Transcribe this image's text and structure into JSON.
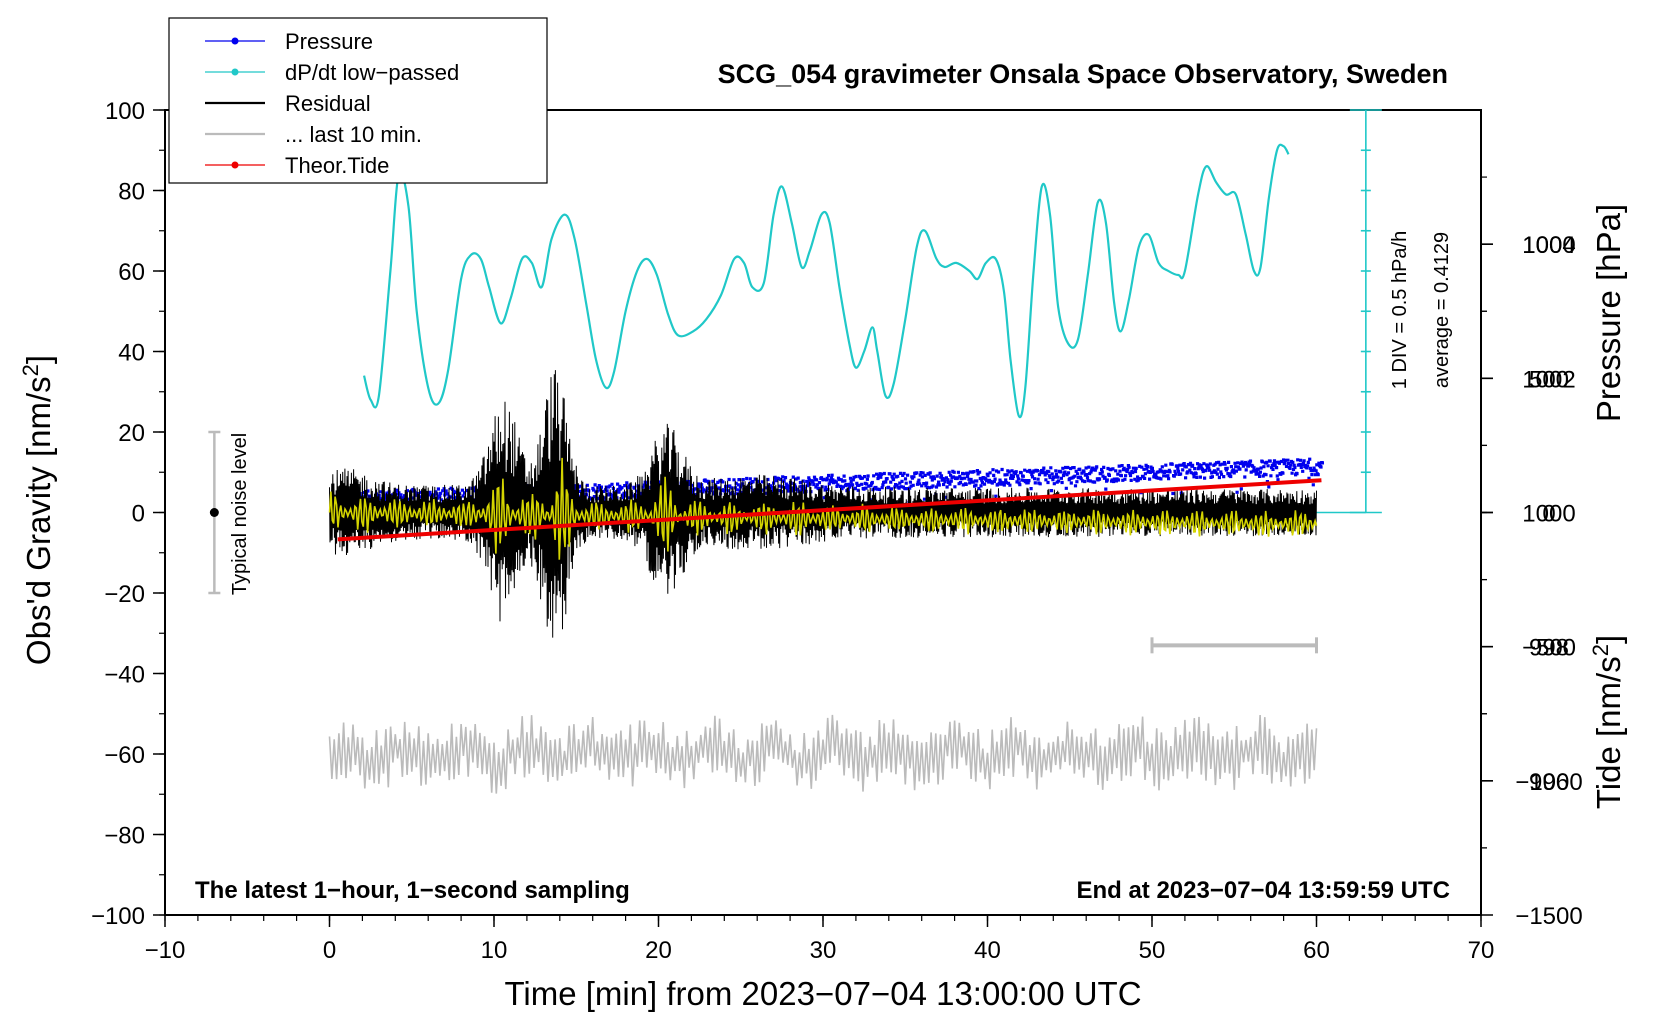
{
  "chart_data": {
    "type": "line",
    "title": "SCG_054 gravimeter Onsala Space Observatory, Sweden",
    "xlabel": "Time [min] from 2023−07−04 13:00:00 UTC",
    "ylabel_left": "Obs'd Gravity [nm/s",
    "ylabel_left_sup": "2",
    "ylabel_left_tail": "]",
    "ylabel_right_pressure": "Pressure [hPa]",
    "ylabel_right_tide": "Tide [nm/s",
    "ylabel_right_tide_sup": "2",
    "ylabel_right_tide_tail": "]",
    "xlim": [
      -10,
      70
    ],
    "ylim_gravity": [
      -100,
      100
    ],
    "ylim_pressure": [
      994,
      1006
    ],
    "ylim_tide": [
      -1500,
      1500
    ],
    "x_ticks": [
      {
        "v": -10,
        "label": "−10"
      },
      {
        "v": 0,
        "label": "0"
      },
      {
        "v": 10,
        "label": "10"
      },
      {
        "v": 20,
        "label": "20"
      },
      {
        "v": 30,
        "label": "30"
      },
      {
        "v": 40,
        "label": "40"
      },
      {
        "v": 50,
        "label": "50"
      },
      {
        "v": 60,
        "label": "60"
      },
      {
        "v": 70,
        "label": "70"
      }
    ],
    "y_ticks_left": [
      {
        "v": 100,
        "label": "100"
      },
      {
        "v": 80,
        "label": "80"
      },
      {
        "v": 60,
        "label": "60"
      },
      {
        "v": 40,
        "label": "40"
      },
      {
        "v": 20,
        "label": "20"
      },
      {
        "v": 0,
        "label": "0"
      },
      {
        "v": -20,
        "label": "−20"
      },
      {
        "v": -40,
        "label": "−40"
      },
      {
        "v": -60,
        "label": "−60"
      },
      {
        "v": -80,
        "label": "−80"
      },
      {
        "v": -100,
        "label": "−100"
      }
    ],
    "y_ticks_pressure": [
      {
        "v": 1004,
        "label": "1004"
      },
      {
        "v": 1002,
        "label": "1002"
      },
      {
        "v": 1000,
        "label": "1000"
      },
      {
        "v": 998,
        "label": "998"
      },
      {
        "v": 996,
        "label": "996"
      }
    ],
    "y_ticks_tide": [
      {
        "v": 1000,
        "label": "1000"
      },
      {
        "v": 500,
        "label": "500"
      },
      {
        "v": 0,
        "label": "0"
      },
      {
        "v": -500,
        "label": "−500"
      },
      {
        "v": -1000,
        "label": "−1000"
      },
      {
        "v": -1500,
        "label": "−1500"
      }
    ],
    "legend": [
      {
        "label": "Pressure",
        "color": "#0000ee",
        "marker": true
      },
      {
        "label": "dP/dt low−passed",
        "color": "#20c8c8",
        "marker": true
      },
      {
        "label": "Residual",
        "color": "#000000",
        "marker": false
      },
      {
        "label": "... last 10 min.",
        "color": "#bbbbbb",
        "marker": false
      },
      {
        "label": "Theor.Tide",
        "color": "#ee0000",
        "marker": true
      }
    ],
    "noise_label": "Typical noise level",
    "noise_range": [
      -20,
      20
    ],
    "noise_x": -7,
    "scale_label_div": "1 DIV = 0.5 hPa/h",
    "scale_label_avg": "average = 0.4129",
    "scale_bar_x": 63,
    "note_left": "The latest 1−hour, 1−second sampling",
    "note_right": "End at 2023−07−04 13:59:59 UTC",
    "window_bar": [
      50,
      60
    ],
    "window_bar_y": -33,
    "series": {
      "pressure": {
        "name": "Pressure",
        "color": "#0000ee",
        "x_range": [
          0.3,
          60.3
        ],
        "p_start": 1000.2,
        "p_end": 1000.7,
        "scatter": 0.12,
        "low_outliers": 999.9
      },
      "dpdt": {
        "name": "dP/dt low−passed",
        "color": "#20c8c8",
        "points": [
          [
            2.1,
            34
          ],
          [
            2.5,
            28
          ],
          [
            3.0,
            29
          ],
          [
            3.7,
            60
          ],
          [
            4.2,
            84
          ],
          [
            4.8,
            76
          ],
          [
            5.3,
            50
          ],
          [
            6.0,
            31
          ],
          [
            6.6,
            27
          ],
          [
            7.2,
            35
          ],
          [
            8.0,
            58
          ],
          [
            8.6,
            64
          ],
          [
            9.2,
            63
          ],
          [
            9.7,
            56
          ],
          [
            10.4,
            47
          ],
          [
            11.0,
            53
          ],
          [
            11.7,
            63
          ],
          [
            12.3,
            62
          ],
          [
            12.9,
            56
          ],
          [
            13.5,
            68
          ],
          [
            14.3,
            74
          ],
          [
            14.9,
            68
          ],
          [
            15.6,
            52
          ],
          [
            16.2,
            38
          ],
          [
            16.8,
            31
          ],
          [
            17.3,
            35
          ],
          [
            18.0,
            50
          ],
          [
            18.7,
            60
          ],
          [
            19.3,
            63
          ],
          [
            19.9,
            59
          ],
          [
            20.6,
            49
          ],
          [
            21.2,
            44
          ],
          [
            22.1,
            45
          ],
          [
            22.9,
            48
          ],
          [
            23.8,
            54
          ],
          [
            24.6,
            63
          ],
          [
            25.2,
            62
          ],
          [
            25.7,
            56
          ],
          [
            26.4,
            57
          ],
          [
            27.0,
            74
          ],
          [
            27.5,
            81
          ],
          [
            28.1,
            72
          ],
          [
            28.7,
            61
          ],
          [
            29.2,
            65
          ],
          [
            29.9,
            74
          ],
          [
            30.4,
            72
          ],
          [
            31.0,
            56
          ],
          [
            31.6,
            42
          ],
          [
            32.0,
            36
          ],
          [
            32.5,
            40
          ],
          [
            33.0,
            46
          ],
          [
            33.3,
            40
          ],
          [
            33.8,
            29
          ],
          [
            34.3,
            32
          ],
          [
            35.0,
            48
          ],
          [
            35.7,
            66
          ],
          [
            36.2,
            70
          ],
          [
            36.9,
            63
          ],
          [
            37.4,
            61
          ],
          [
            38.1,
            62
          ],
          [
            38.9,
            60
          ],
          [
            39.4,
            58
          ],
          [
            39.9,
            62
          ],
          [
            40.5,
            63
          ],
          [
            41.0,
            55
          ],
          [
            41.4,
            38
          ],
          [
            41.9,
            24
          ],
          [
            42.3,
            31
          ],
          [
            42.8,
            60
          ],
          [
            43.3,
            81
          ],
          [
            43.8,
            74
          ],
          [
            44.3,
            51
          ],
          [
            44.9,
            42
          ],
          [
            45.5,
            43
          ],
          [
            46.1,
            59
          ],
          [
            46.7,
            77
          ],
          [
            47.2,
            72
          ],
          [
            47.7,
            52
          ],
          [
            48.1,
            45
          ],
          [
            48.6,
            53
          ],
          [
            49.2,
            66
          ],
          [
            49.8,
            69
          ],
          [
            50.4,
            62
          ],
          [
            51.0,
            60
          ],
          [
            51.6,
            59
          ],
          [
            52.0,
            60
          ],
          [
            52.8,
            79
          ],
          [
            53.3,
            86
          ],
          [
            53.9,
            82
          ],
          [
            54.5,
            79
          ],
          [
            55.1,
            79
          ],
          [
            55.7,
            69
          ],
          [
            56.2,
            60
          ],
          [
            56.6,
            61
          ],
          [
            57.1,
            78
          ],
          [
            57.6,
            90
          ],
          [
            58.0,
            91
          ],
          [
            58.3,
            89
          ]
        ]
      },
      "residual": {
        "name": "Residual",
        "color": "#000000",
        "x_range": [
          0.0,
          60.0
        ]
      },
      "last10": {
        "name": "... last 10 min.",
        "color": "#bbbbbb",
        "x_range": [
          0.0,
          60.0
        ],
        "offset": -60
      },
      "tide": {
        "name": "Theor.Tide",
        "color": "#ee0000",
        "x_range": [
          0.5,
          60.3
        ],
        "values": [
          -100,
          120
        ]
      },
      "residual_smooth": {
        "name": "Residual low-passed",
        "color": "#d4d400"
      }
    },
    "pressure_ref_line": 1000,
    "grid": false
  }
}
